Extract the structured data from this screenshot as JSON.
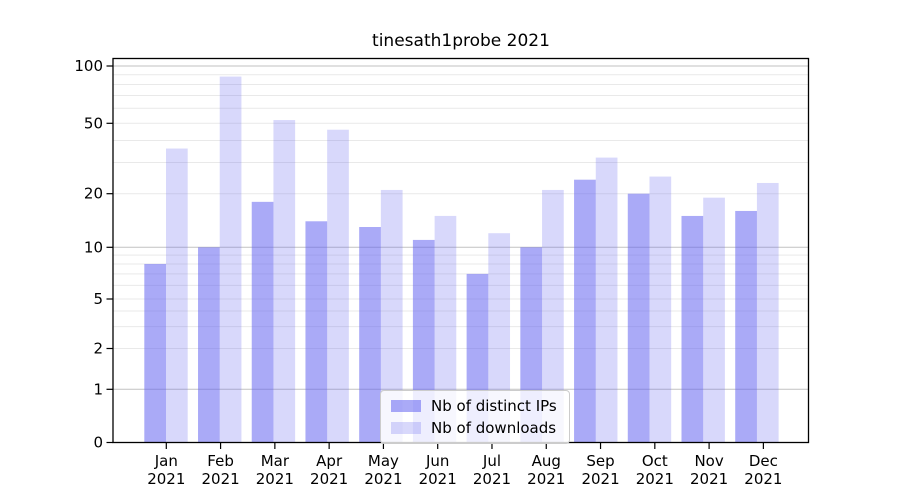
{
  "chart_data": {
    "type": "bar",
    "title": "tinesath1probe 2021",
    "categories": [
      "Jan",
      "Feb",
      "Mar",
      "Apr",
      "May",
      "Jun",
      "Jul",
      "Aug",
      "Sep",
      "Oct",
      "Nov",
      "Dec"
    ],
    "year_label": "2021",
    "series": [
      {
        "name": "Nb of distinct IPs",
        "color": "#a4a4f0",
        "fill_rgba": "rgba(100,100,240,0.55)",
        "values": [
          8,
          10,
          18,
          14,
          13,
          11,
          7,
          10,
          24,
          20,
          15,
          16
        ]
      },
      {
        "name": "Nb of downloads",
        "color": "#d9d9f8",
        "fill_rgba": "rgba(100,100,240,0.25)",
        "values": [
          36,
          88,
          52,
          46,
          21,
          15,
          12,
          21,
          32,
          25,
          19,
          23
        ]
      }
    ],
    "y_ticks": [
      100,
      50,
      20,
      10,
      5,
      2,
      1,
      0
    ],
    "y_scale": "log-like, 0 shown at baseline",
    "ylim": [
      0,
      110
    ],
    "grid": "horizontal major and minor gridlines",
    "legend_position": "lower center",
    "colors": {
      "major_grid": "#c2c2c2",
      "minor_grid": "#e9e9e9",
      "axis": "#000000",
      "background": "#ffffff"
    }
  }
}
